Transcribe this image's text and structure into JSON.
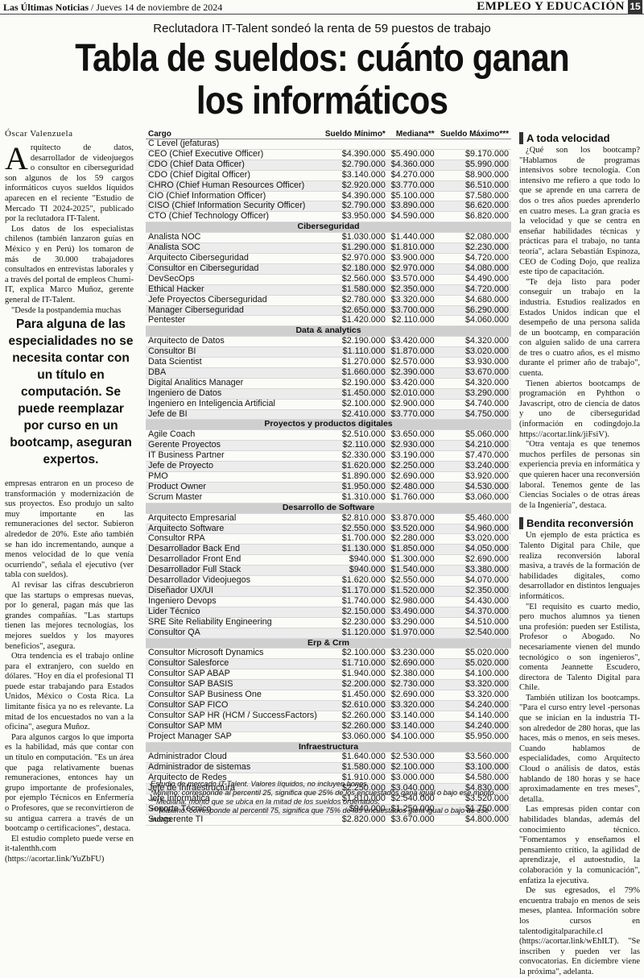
{
  "masthead": {
    "paper": "Las Últimas Noticias",
    "date": "/ Jueves 14 de noviembre de 2024",
    "section": "EMPLEO Y EDUCACIÓN",
    "page": "15"
  },
  "kicker": "Reclutadora IT-Talent sondeó la renta de 59 puestos de trabajo",
  "headline": {
    "line1": "Tabla de sueldos: cuánto ganan",
    "line2": "los informáticos"
  },
  "byline": "Óscar Valenzuela",
  "pullquote": "Para alguna de las especialidades no se necesita contar con un título en computación. Se puede reemplazar por curso en un bootcamp, aseguran expertos.",
  "col1_top": [
    "Arquitecto de datos, desarrollador de videojuegos o consultor en ciberseguridad son algunos de los 59 cargos informáticos cuyos sueldos líquidos aparecen en el reciente \"Estudio de Mercado TI 2024-2025\", publicado por la reclutadora IT-Talent.",
    "Los datos de los especialistas chilenos (también lanzaron guías en México y en Perú) los tomaron de más de 30.000 trabajadores consultados en entrevistas laborales y a través del portal de empleos Chumi-IT, explica Marco Muñoz, gerente general de IT-Talent.",
    "\"Desde la postpandemia muchas"
  ],
  "col1_bottom": [
    "empresas entraron en un proceso de transformación y modernización de sus proyectos. Eso produjo un salto muy importante en las remuneraciones del sector. Subieron alrededor de 20%. Este año también se han ido incrementando, aunque a menos velocidad de lo que venía ocurriendo\", señala el ejecutivo (ver tabla con sueldos).",
    "Al revisar las cifras descubrieron que las startups o empresas nuevas, por lo general, pagan más que las grandes compañías. \"Las startups tienen las mejores tecnologías, los mejores sueldos y los mayores beneficios\", asegura.",
    "Otra tendencia es el trabajo online para el extranjero, con sueldo en dólares. \"Hoy en día el profesional TI puede estar trabajando para Estados Unidos, México o Costa Rica. La limitante física ya no es relevante. La mitad de los encuestados no van a la oficina\", asegura Muñoz.",
    "Para algunos cargos lo que importa es la habilidad, más que contar con un título en computación. \"Es un área que paga relativamente buenas remuneraciones, entonces hay un grupo importante de profesionales, por ejemplo Técnicos en Enfermería o Profesores, que se reconvirtieron de su antigua carrera a través de un bootcamp o certificaciones\", destaca.",
    "El estudio completo puede verse en it-talenthh.com (https://acortar.link/YuZbFU)"
  ],
  "col3": {
    "h1": "A toda velocidad",
    "p1": [
      "¿Qué son los bootcamp? \"Hablamos de programas intensivos sobre tecnología. Con intensivo me refiero a que todo lo que se aprende en una carrera de dos o tres años puedes aprenderlo en cuatro meses. La gran gracia es la velocidad y que se centra en enseñar habilidades técnicas y prácticas para el trabajo, no tanta teoría\", aclara Sebastián Espinoza, CEO de Coding Dojo, que realiza este tipo de capacitación.",
      "\"Te deja listo para poder conseguir un trabajo en la industria. Estudios realizados en Estados Unidos indican que el desempeño de una persona salida de un bootcamp, en comparación con alguien salido de una carrera de tres o cuatro años, es el mismo durante el primer año de trabajo\", cuenta.",
      "Tienen abiertos bootcamps de programación en Pyhthon o Javascript, otro de ciencia de datos y uno de ciberseguridad (información en codingdojo.la https://acortar.link/jiFsiV).",
      "\"Otra ventaja es que tenemos muchos perfiles de personas sin experiencia previa en informática y que quieren hacer una reconversión laboral. Tenemos gente de las Ciencias Sociales o de otras áreas de la Ingeniería\", destaca."
    ],
    "h2": "Bendita reconversión",
    "p2": [
      "Un ejemplo de esta práctica es Talento Digital para Chile, que realiza reconversión laboral masiva, a través de la formación de habilidades digitales, como desarrollador en distintos lenguajes informáticos.",
      "\"El requisito es cuarto medio, pero muchos alumnos ya tienen una profesión: pueden ser Estilista, Profesor o Abogado. No necesariamente vienen del mundo tecnológico o son ingenieros\", comenta Jeannette Escudero, directora de Talento Digital para Chile.",
      "También utilizan los bootcamps. \"Para el curso entry level -personas que se inician en la industria TI- son alrededor de 280 horas, que las haces, más o menos, en seis meses. Cuando hablamos de especialidades, como Arquitecto Cloud o análisis de datos, estás hablando de 180 horas y se hace aproximadamente en tres meses\", detalla.",
      "Las empresas piden contar con habilidades blandas, además del conocimiento técnico. \"Fomentamos y enseñamos el pensamiento crítico, la agilidad de aprendizaje, el autoestudio, la colaboración y la comunicación\", enfatiza la ejecutiva.",
      "De sus egresados, el 79% encuentra trabajo en menos de seis meses, plantea. Información sobre los cursos en talentodigitalparachile.cl (https://acortar.link/wEhILT). \"Se inscriben y pueden ver las convocatorias. En diciembre viene la próxima\", adelanta."
    ]
  },
  "table": {
    "headers": [
      "Cargo",
      "Sueldo Mínimo*",
      "Mediana**",
      "Sueldo Máximo***"
    ],
    "groups": [
      {
        "name": "C Level (jefaturas)",
        "style": "plain",
        "rows": [
          [
            "CEO (Chief Executive Officer)",
            "$4.390.000",
            "$5.490.000",
            "$9.170.000"
          ],
          [
            "CDO (Chief Data Officer)",
            "$2.790.000",
            "$4.360.000",
            "$5.990.000"
          ],
          [
            "CDO (Chief Digital Officer)",
            "$3.140.000",
            "$4.270.000",
            "$8.900.000"
          ],
          [
            "CHRO (Chief Human Resources Officer)",
            "$2.920.000",
            "$3.770.000",
            "$6.510.000"
          ],
          [
            "CIO (Chief Information Officer)",
            "$4.390.000",
            "$5.100.000",
            "$7.580.000"
          ],
          [
            "CISO (Chief Information Security Officer)",
            "$2.790.000",
            "$3.890.000",
            "$6.620.000"
          ],
          [
            "CTO (Chief Technology Officer)",
            "$3.950.000",
            "$4.590.000",
            "$6.820.000"
          ]
        ]
      },
      {
        "name": "Ciberseguridad",
        "style": "bar",
        "rows": [
          [
            "Analista NOC",
            "$1.030.000",
            "$1.440.000",
            "$2.080.000"
          ],
          [
            "Analista SOC",
            "$1.290.000",
            "$1.810.000",
            "$2.230.000"
          ],
          [
            "Arquitecto Ciberseguridad",
            "$2.970.000",
            "$3.900.000",
            "$4.720.000"
          ],
          [
            "Consultor en Ciberseguridad",
            "$2.180.000",
            "$2.970.000",
            "$4.080.000"
          ],
          [
            "DevSecOps",
            "$2.560.000",
            "$3.570.000",
            "$4.490.000"
          ],
          [
            "Ethical Hacker",
            "$1.580.000",
            "$2.350.000",
            "$4.720.000"
          ],
          [
            "Jefe Proyectos Ciberseguridad",
            "$2.780.000",
            "$3.320.000",
            "$4.680.000"
          ],
          [
            "Manager Ciberseguridad",
            "$2.650.000",
            "$3.700.000",
            "$6.290.000"
          ],
          [
            "Pentester",
            "$1.420.000",
            "$2.110.000",
            "$4.060.000"
          ]
        ]
      },
      {
        "name": "Data & analytics",
        "style": "bar",
        "rows": [
          [
            "Arquitecto de Datos",
            "$2.190.000",
            "$3.420.000",
            "$4.320.000"
          ],
          [
            "Consultor BI",
            "$1.110.000",
            "$1.870.000",
            "$3.020.000"
          ],
          [
            "Data Scientist",
            "$1.270.000",
            "$2.570.000",
            "$3.930.000"
          ],
          [
            "DBA",
            "$1.660.000",
            "$2.390.000",
            "$3.670.000"
          ],
          [
            "Digital Analitics Manager",
            "$2.190.000",
            "$3.420.000",
            "$4.320.000"
          ],
          [
            "Ingeniero de Datos",
            "$1.450.000",
            "$2.010.000",
            "$3.290.000"
          ],
          [
            "Ingeniero en Inteligencia Artificial",
            "$2.100.000",
            "$2.900.000",
            "$4.740.000"
          ],
          [
            "Jefe de BI",
            "$2.410.000",
            "$3.770.000",
            "$4.750.000"
          ]
        ]
      },
      {
        "name": "Proyectos y productos digitales",
        "style": "bar",
        "rows": [
          [
            "Agile Coach",
            "$2.510.000",
            "$3.650.000",
            "$5.060.000"
          ],
          [
            "Gerente Proyectos",
            "$2.110.000",
            "$2.930.000",
            "$4.210.000"
          ],
          [
            "IT Business Partner",
            "$2.330.000",
            "$3.190.000",
            "$7.470.000"
          ],
          [
            "Jefe de Proyecto",
            "$1.620.000",
            "$2.250.000",
            "$3.240.000"
          ],
          [
            "PMO",
            "$1.890.000",
            "$2.690.000",
            "$3.920.000"
          ],
          [
            "Product Owner",
            "$1.950.000",
            "$2.480.000",
            "$4.530.000"
          ],
          [
            "Scrum Master",
            "$1.310.000",
            "$1.760.000",
            "$3.060.000"
          ]
        ]
      },
      {
        "name": "Desarrollo de Software",
        "style": "bar",
        "rows": [
          [
            "Arquitecto Empresarial",
            "$2.810.000",
            "$3.870.000",
            "$5.460.000"
          ],
          [
            "Arquitecto Software",
            "$2.550.000",
            "$3.520.000",
            "$4.960.000"
          ],
          [
            "Consultor RPA",
            "$1.700.000",
            "$2.280.000",
            "$3.020.000"
          ],
          [
            "Desarrollador Back End",
            "$1.130.000",
            "$1.850.000",
            "$4.050.000"
          ],
          [
            "Desarrollador Front End",
            "$940.000",
            "$1.300.000",
            "$2.690.000"
          ],
          [
            "Desarrollador Full Stack",
            "$940.000",
            "$1.540.000",
            "$3.380.000"
          ],
          [
            "Desarrollador Videojuegos",
            "$1.620.000",
            "$2.550.000",
            "$4.070.000"
          ],
          [
            "Diseñador UX/UI",
            "$1.170.000",
            "$1.520.000",
            "$2.350.000"
          ],
          [
            "Ingeniero Devops",
            "$1.740.000",
            "$2.980.000",
            "$4.430.000"
          ],
          [
            "Lider Técnico",
            "$2.150.000",
            "$3.490.000",
            "$4.370.000"
          ],
          [
            "SRE Site Reliability Engineering",
            "$2.230.000",
            "$3.290.000",
            "$4.510.000"
          ],
          [
            "Consultor QA",
            "$1.120.000",
            "$1.970.000",
            "$2.540.000"
          ]
        ]
      },
      {
        "name": "Erp & Crm",
        "style": "bar",
        "rows": [
          [
            "Consultor Microsoft Dynamics",
            "$2.100.000",
            "$3.230.000",
            "$5.020.000"
          ],
          [
            "Consultor Salesforce",
            "$1.710.000",
            "$2.690.000",
            "$5.020.000"
          ],
          [
            "Consultor SAP ABAP",
            "$1.940.000",
            "$2.380.000",
            "$4.100.000"
          ],
          [
            "Consultor SAP BASIS",
            "$2.200.000",
            "$2.730.000",
            "$3.320.000"
          ],
          [
            "Consultor SAP Business One",
            "$1.450.000",
            "$2.690.000",
            "$3.320.000"
          ],
          [
            "Consultor SAP FICO",
            "$2.610.000",
            "$3.320.000",
            "$4.240.000"
          ],
          [
            "Consultor SAP HR (HCM / SuccessFactors)",
            "$2.260.000",
            "$3.140.000",
            "$4.140.000"
          ],
          [
            "Consultor SAP MM",
            "$2.260.000",
            "$3.140.000",
            "$4.240.000"
          ],
          [
            "Project Manager SAP",
            "$3.060.000",
            "$4.100.000",
            "$5.950.000"
          ]
        ]
      },
      {
        "name": "Infraestructura",
        "style": "bar",
        "rows": [
          [
            "Administrador Cloud",
            "$1.640.000",
            "$2.530.000",
            "$3.560.000"
          ],
          [
            "Administrador de sistemas",
            "$1.580.000",
            "$2.100.000",
            "$3.100.000"
          ],
          [
            "Arquitecto de Redes",
            "$1.910.000",
            "$3.000.000",
            "$4.580.000"
          ],
          [
            "Jefe de Infraestructura",
            "$2.250.000",
            "$3.040.000",
            "$4.830.000"
          ],
          [
            "Jefe Informática",
            "$1.810.000",
            "$2.540.000",
            "$3.520.000"
          ],
          [
            "Soporte Técnico",
            "$940.000",
            "$1.250.000",
            "$1.750.000"
          ],
          [
            "Subgerente TI",
            "$2.820.000",
            "$3.670.000",
            "$4.800.000"
          ]
        ]
      }
    ],
    "notes": [
      "Estudio de mercado IT-Talent. Valores líquidos, no incluyen bonos.",
      "*Mínimo: corresponde al percentil 25, significa que 25% de los encuestados gana igual o bajo ese monto.",
      "**Mediana: monto que se ubica en la mitad de los sueldos ordenados.",
      "***Máximo: corresponde al percentil 75, significa que 75% de los encuestados gana igual o bajo de ese monto."
    ]
  }
}
